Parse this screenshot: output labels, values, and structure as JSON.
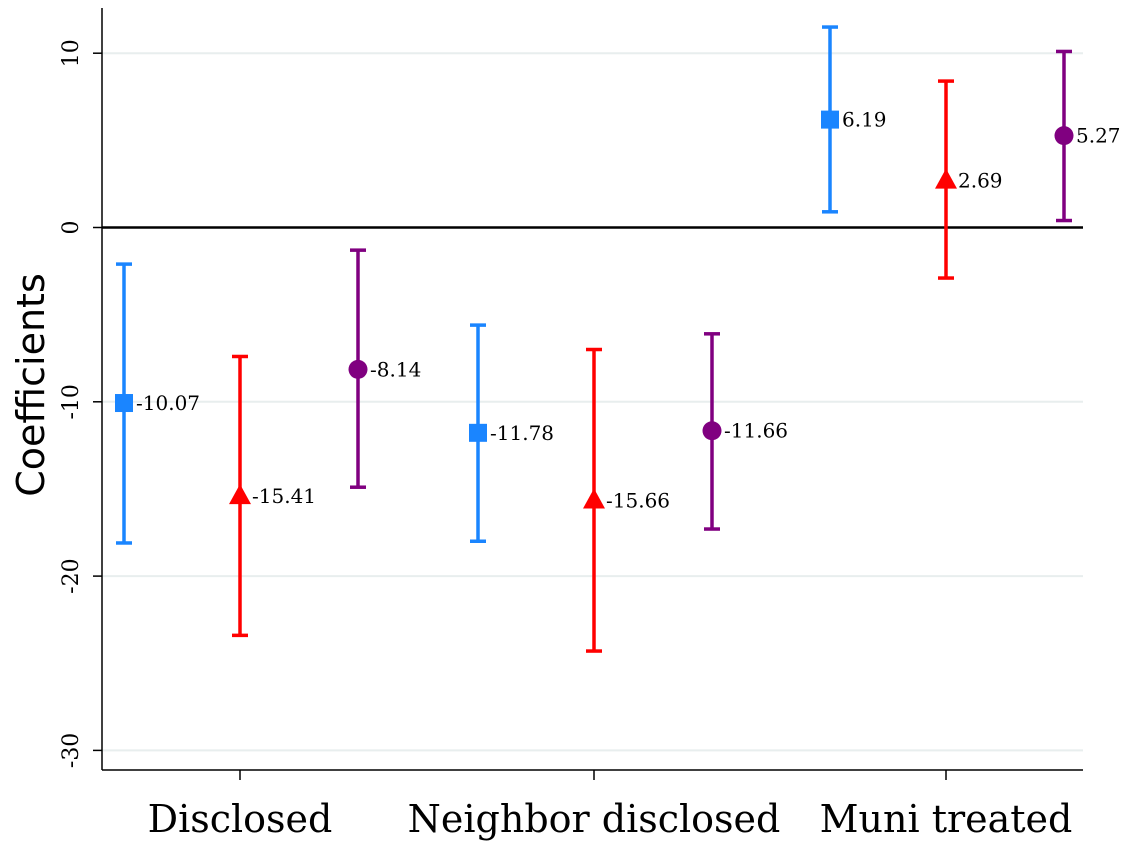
{
  "chart_data": {
    "type": "scatter",
    "subtype": "coefficient-plot-with-confidence-intervals",
    "title": "",
    "xlabel": "",
    "ylabel": "Coefficients",
    "ylim": [
      -31.5,
      12.7
    ],
    "yticks": [
      10,
      0,
      -10,
      -20,
      -30
    ],
    "ytick_labels": [
      "10",
      "0",
      "-10",
      "-20",
      "-30"
    ],
    "grid": true,
    "zero_line": true,
    "categories": [
      "Disclosed",
      "Neighbor disclosed",
      "Muni treated"
    ],
    "series": [
      {
        "marker": "square",
        "color": "#1a85ff",
        "points": [
          {
            "category": "Disclosed",
            "value": -10.07,
            "ci": [
              -18.1,
              -2.1
            ],
            "label": "-10.07"
          },
          {
            "category": "Neighbor disclosed",
            "value": -11.78,
            "ci": [
              -18.0,
              -5.6
            ],
            "label": "-11.78"
          },
          {
            "category": "Muni treated",
            "value": 6.19,
            "ci": [
              0.9,
              11.5
            ],
            "label": "6.19"
          }
        ]
      },
      {
        "marker": "triangle",
        "color": "#ff0000",
        "points": [
          {
            "category": "Disclosed",
            "value": -15.41,
            "ci": [
              -23.4,
              -7.4
            ],
            "label": "-15.41"
          },
          {
            "category": "Neighbor disclosed",
            "value": -15.66,
            "ci": [
              -24.3,
              -7.0
            ],
            "label": "-15.66"
          },
          {
            "category": "Muni treated",
            "value": 2.69,
            "ci": [
              -2.9,
              8.4
            ],
            "label": "2.69"
          }
        ]
      },
      {
        "marker": "circle",
        "color": "#800080",
        "points": [
          {
            "category": "Disclosed",
            "value": -8.14,
            "ci": [
              -14.9,
              -1.3
            ],
            "label": "-8.14"
          },
          {
            "category": "Neighbor disclosed",
            "value": -11.66,
            "ci": [
              -17.3,
              -6.1
            ],
            "label": "-11.66"
          },
          {
            "category": "Muni treated",
            "value": 5.27,
            "ci": [
              0.4,
              10.1
            ],
            "label": "5.27"
          }
        ]
      }
    ]
  }
}
